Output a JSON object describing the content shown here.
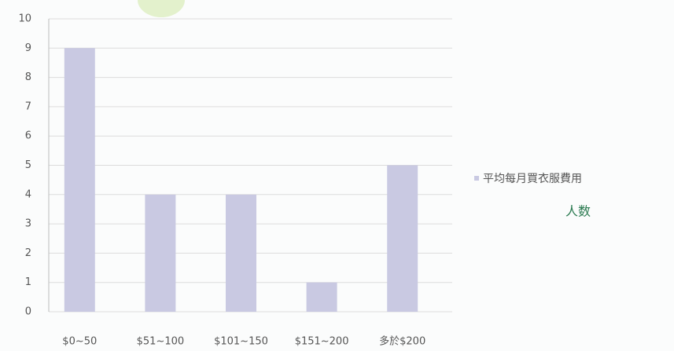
{
  "chart_data": {
    "type": "bar",
    "categories": [
      "$0~50",
      "$51~100",
      "$101~150",
      "$151~200",
      "多於$200"
    ],
    "series": [
      {
        "name": "平均每月買衣服費用",
        "color": "#c9c9e2",
        "values": [
          9,
          4,
          4,
          1,
          5
        ]
      }
    ],
    "legend_note": "人数",
    "ylim": [
      0,
      10
    ],
    "yticks": [
      0,
      1,
      2,
      3,
      4,
      5,
      6,
      7,
      8,
      9,
      10
    ],
    "grid": true,
    "legend": "right"
  }
}
